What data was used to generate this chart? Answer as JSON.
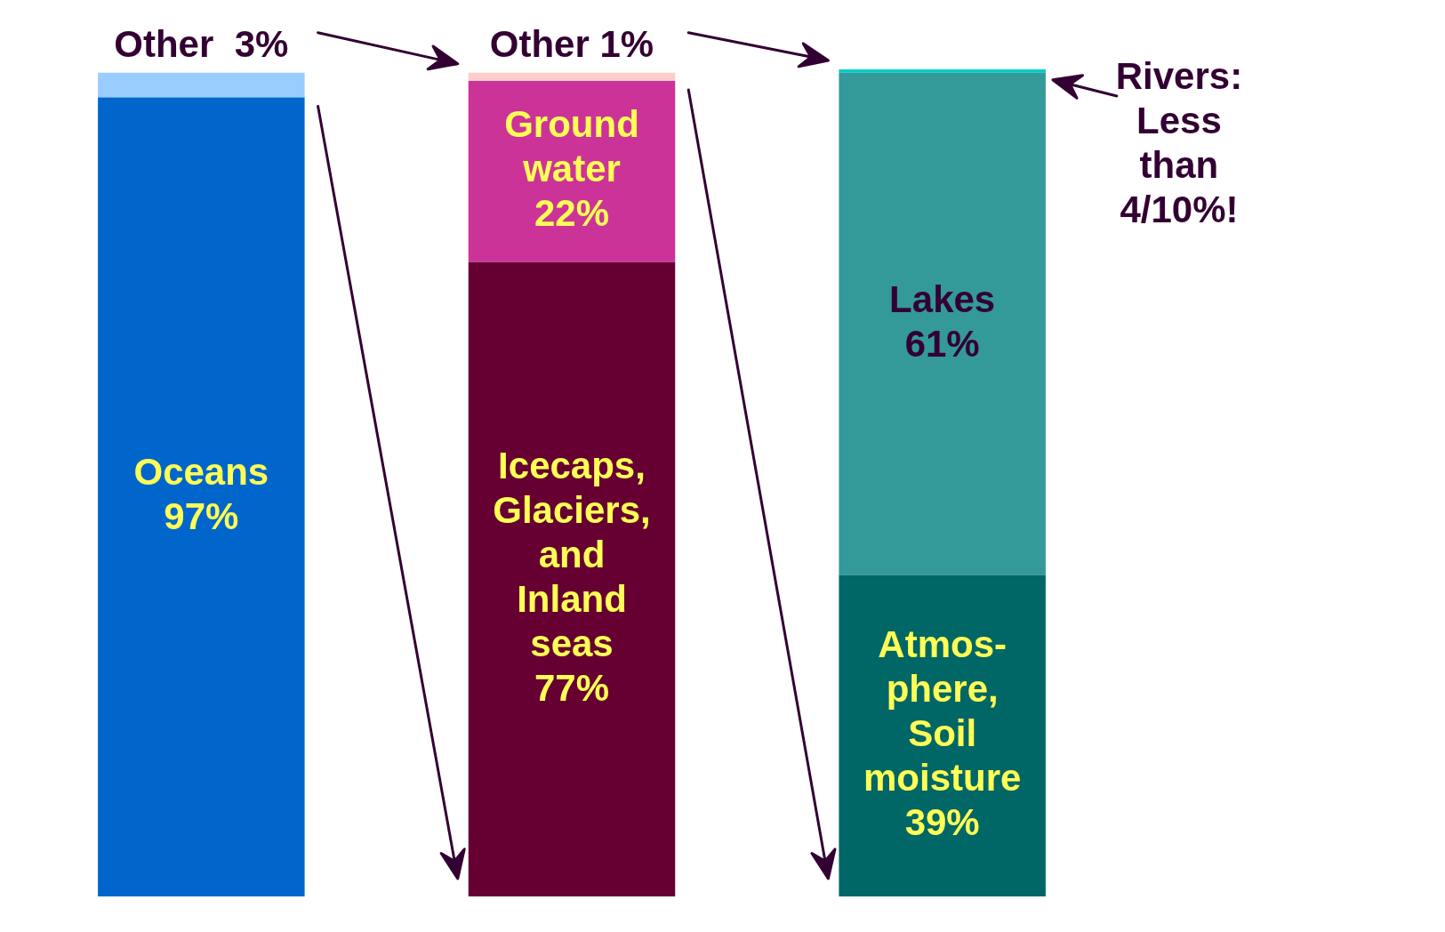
{
  "chart_data": {
    "type": "bar",
    "stacked": true,
    "categories": [
      null,
      null,
      null
    ],
    "series": [
      {
        "values": [
          97,
          77,
          39
        ],
        "colors": [
          "#0066cc",
          "#660033",
          "#006666"
        ],
        "value_labels": [
          "Oceans\n97%",
          "Icecaps,\nGlaciers,\nand\nInland\nseas\n77%",
          "Atmos-\nphere,\nSoil\nmoisture\n39%"
        ]
      },
      {
        "values": [
          3,
          22,
          61
        ],
        "colors": [
          "#99ccff",
          "#cc3399",
          "#339999"
        ],
        "value_labels": [
          "Other  3%",
          "Ground\nwater\n22%",
          "Lakes\n61%"
        ]
      },
      {
        "values": [
          null,
          1,
          0.4
        ],
        "colors": [
          "#ffcccc",
          "#ffcccc",
          "#00cccc"
        ],
        "value_labels": [
          null,
          "Other 1%",
          null
        ]
      }
    ],
    "annotations": [
      "Rivers:\nLess\nthan\n4/10%!"
    ]
  }
}
